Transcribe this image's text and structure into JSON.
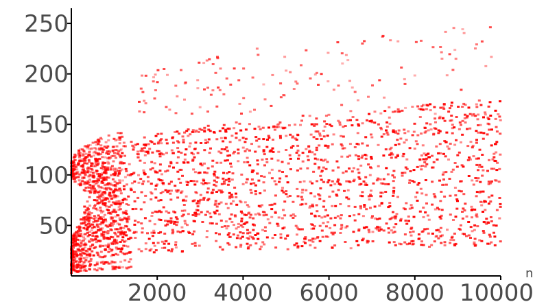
{
  "chart_data": {
    "type": "scatter",
    "title": "",
    "xlabel": "n",
    "ylabel": "",
    "xlim": [
      0,
      10000
    ],
    "ylim": [
      0,
      265
    ],
    "x_ticks": [
      2000,
      4000,
      6000,
      8000,
      10000
    ],
    "y_ticks": [
      50,
      100,
      150,
      200,
      250
    ],
    "x_tick_labels": [
      "2000",
      "4000",
      "6000",
      "8000",
      "10000"
    ],
    "y_tick_labels": [
      "50",
      "100",
      "150",
      "200",
      "250"
    ],
    "grid": false,
    "legend": "none",
    "series": [
      {
        "color": "#ff0000",
        "marker": "dot",
        "values_description": "dense red scatter of several thousand points; lower envelope near y≈20 rising slowly, upper envelope ≈150–180 beyond n=2000, sparse points up to ≈260, fan of curved bands emanating from near (0,0) and (0,100)"
      }
    ]
  }
}
